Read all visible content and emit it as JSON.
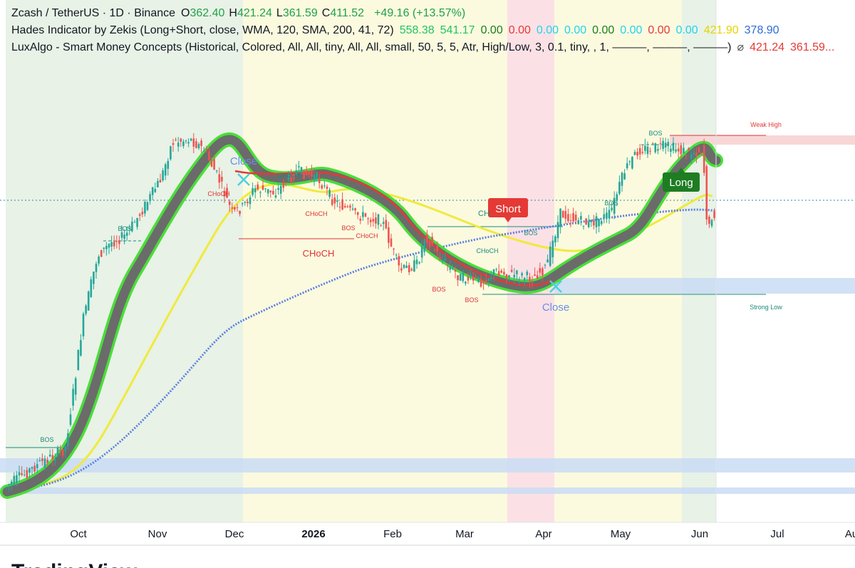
{
  "header": {
    "symbol": "Zcash / TetherUS · 1D · Binance",
    "ohlc": [
      {
        "label": "O",
        "value": "362.40"
      },
      {
        "label": "H",
        "value": "421.24"
      },
      {
        "label": "L",
        "value": "361.59"
      },
      {
        "label": "C",
        "value": "411.52"
      }
    ],
    "change": "+49.16 (+13.57%)"
  },
  "indicators": [
    {
      "name": "Hades Indicator by Zekis (Long+Short, close, WMA, 120, SMA, 200, 41, 72)",
      "values": [
        {
          "text": "558.38",
          "color": "#22c55e"
        },
        {
          "text": "541.17",
          "color": "#22c55e"
        },
        {
          "text": "0.00",
          "color": "#1a7f1a"
        },
        {
          "text": "0.00",
          "color": "#e53935"
        },
        {
          "text": "0.00",
          "color": "#22d3ee"
        },
        {
          "text": "0.00",
          "color": "#22d3ee"
        },
        {
          "text": "0.00",
          "color": "#1a7f1a"
        },
        {
          "text": "0.00",
          "color": "#22d3ee"
        },
        {
          "text": "0.00",
          "color": "#e53935"
        },
        {
          "text": "0.00",
          "color": "#22d3ee"
        },
        {
          "text": "421.90",
          "color": "#e6d400"
        },
        {
          "text": "378.90",
          "color": "#2f6bd8"
        }
      ]
    },
    {
      "name": "LuxAlgo - Smart Money Concepts (Historical, Colored, All, All, tiny, All, All, small, 50, 5, 5, Atr, High/Low, 3, 0.1, tiny, , 1, ———, ———, ———)",
      "values": [
        {
          "text": "⌀",
          "color": "#555555"
        },
        {
          "text": "421.24",
          "color": "#e53935"
        },
        {
          "text": "361.59...",
          "color": "#e53935"
        }
      ]
    }
  ],
  "x_axis": [
    "Oct",
    "Nov",
    "Dec",
    "2026",
    "Feb",
    "Mar",
    "Apr",
    "May",
    "Jun",
    "Jul",
    "Au"
  ],
  "annotations": {
    "close_1": "Close",
    "close_2": "Close",
    "short": "Short",
    "long": "Long",
    "weak_high": "Weak High",
    "strong_low": "Strong Low",
    "bos": [
      "BOS",
      "BOS",
      "BOS",
      "BOS",
      "BOS",
      "BOS",
      "BOS",
      "BOS"
    ],
    "choch": [
      "CHoCH",
      "CHoCH",
      "CHoCH",
      "CHoCH",
      "CHoCH",
      "CHoCH",
      "CH"
    ]
  },
  "footer": {
    "brand": "TradingView"
  }
}
